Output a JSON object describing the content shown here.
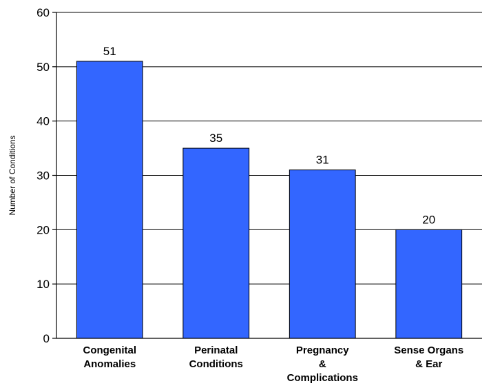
{
  "chart_data": {
    "type": "bar",
    "categories": [
      [
        "Congenital",
        "Anomalies"
      ],
      [
        "Perinatal",
        "Conditions"
      ],
      [
        "Pregnancy",
        "&",
        "Complications"
      ],
      [
        "Sense Organs",
        "& Ear"
      ]
    ],
    "values": [
      51,
      35,
      31,
      20
    ],
    "data_labels": [
      "51",
      "35",
      "31",
      "20"
    ],
    "ylabel": "Number of Conditions",
    "ylim": [
      0,
      60
    ],
    "yticks": [
      0,
      10,
      20,
      30,
      40,
      50,
      60
    ],
    "grid": true,
    "bar_color": "#3366ff"
  }
}
